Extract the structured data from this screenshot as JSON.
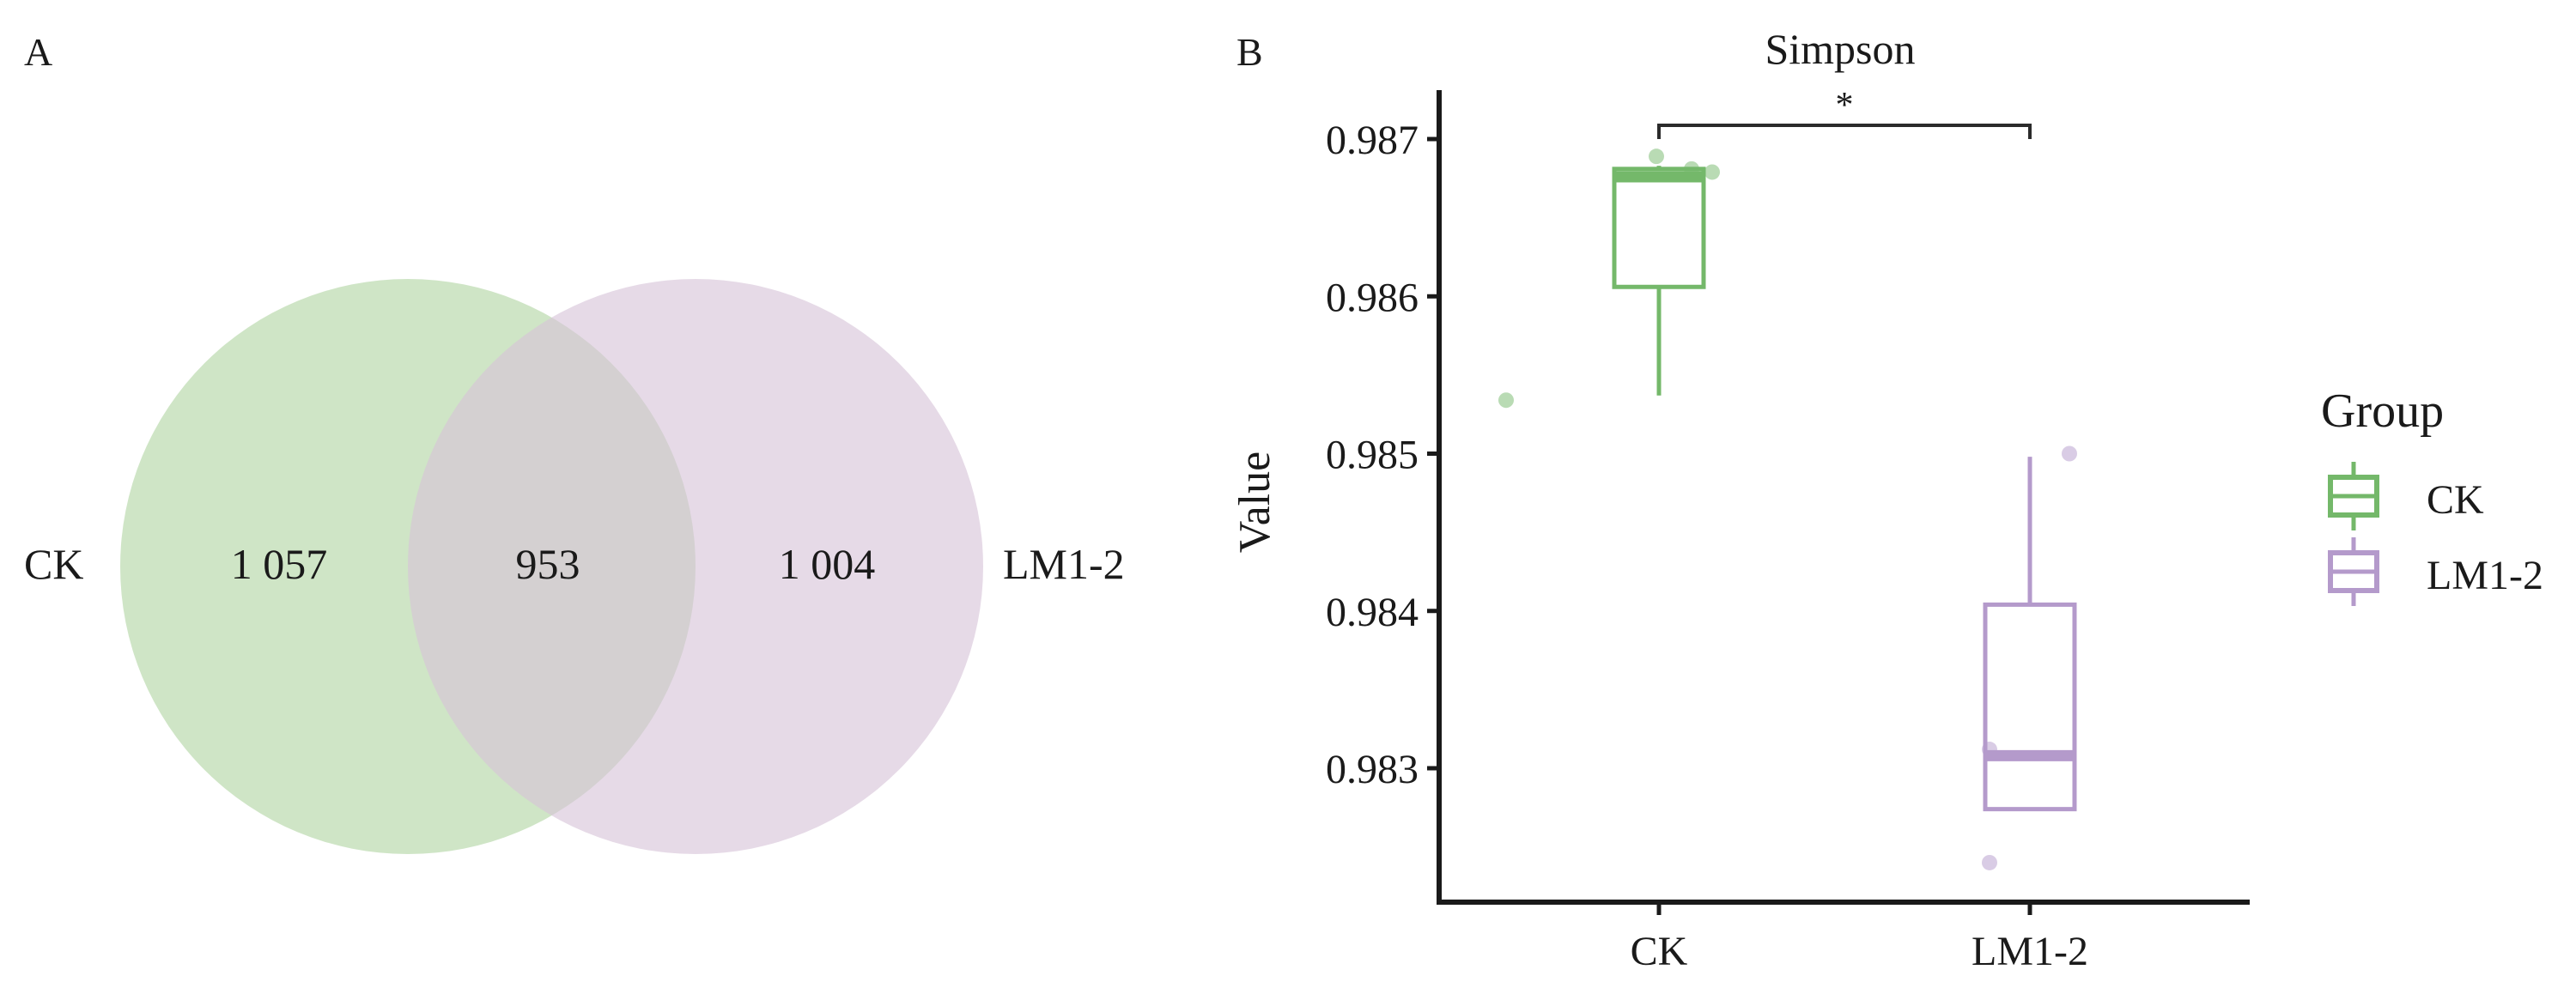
{
  "panels": {
    "a_label": "A",
    "b_label": "B"
  },
  "colors": {
    "ck": "#74b86a",
    "ck_fill": "#bfdcb3",
    "lm": "#b49acb",
    "lm_fill": "#dcc9dd",
    "axis": "#1a1a1a"
  },
  "chart_data": [
    {
      "type": "venn",
      "sets": [
        {
          "name": "CK",
          "only": "1 057"
        },
        {
          "name": "LM1-2",
          "only": "1 004"
        }
      ],
      "shared": "953"
    },
    {
      "type": "box",
      "title": "Simpson",
      "ylabel": "Value",
      "xlabel": "",
      "ylim": [
        0.9822,
        0.9873
      ],
      "yticks": [
        0.983,
        0.984,
        0.985,
        0.986,
        0.987
      ],
      "ytick_labels": [
        "0.983",
        "0.984",
        "0.985",
        "0.986",
        "0.987"
      ],
      "categories": [
        "CK",
        "LM1-2"
      ],
      "boxes": [
        {
          "name": "CK",
          "whisker_low": 0.98537,
          "q1": 0.98606,
          "median": 0.98676,
          "q3": 0.98681,
          "whisker_high": 0.98683,
          "points": [
            0.98534,
            0.98689,
            0.98681,
            0.98679
          ]
        },
        {
          "name": "LM1-2",
          "whisker_low": 0.98274,
          "q1": 0.98274,
          "median": 0.98308,
          "q3": 0.98404,
          "whisker_high": 0.98498,
          "points": [
            0.9824,
            0.98312,
            0.985
          ]
        }
      ],
      "significance": {
        "from": "CK",
        "to": "LM1-2",
        "label": "*"
      },
      "legend": {
        "title": "Group",
        "position": "right",
        "entries": [
          "CK",
          "LM1-2"
        ]
      }
    }
  ]
}
